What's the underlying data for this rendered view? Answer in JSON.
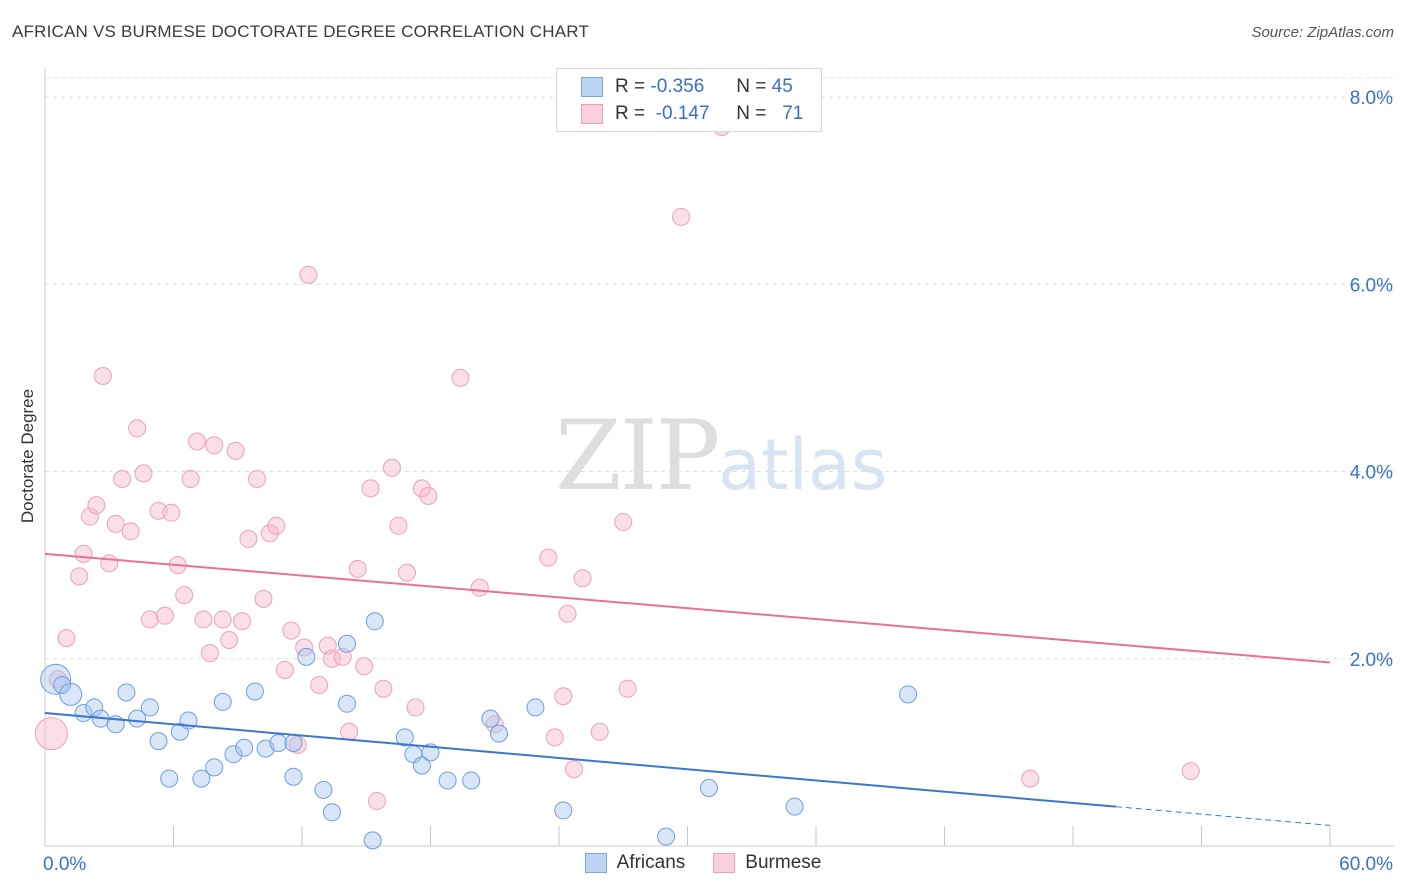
{
  "header": {
    "title": "AFRICAN VS BURMESE DOCTORATE DEGREE CORRELATION CHART",
    "source": "Source: ZipAtlas.com"
  },
  "watermark": {
    "zip": "ZIP",
    "atlas": "atlas"
  },
  "legend": {
    "rows": [
      {
        "r_label": "R =",
        "r_value": "-0.356",
        "n_label": "N =",
        "n_value": "45",
        "color": "#a8c8f0"
      },
      {
        "r_label": "R =",
        "r_value": "-0.147",
        "n_label": "N =",
        "n_value": "71",
        "color": "#f7b8cc"
      }
    ]
  },
  "bottom_legend": {
    "africans": "Africans",
    "burmese": "Burmese"
  },
  "chart_data": {
    "type": "scatter",
    "title": "AFRICAN VS BURMESE DOCTORATE DEGREE CORRELATION CHART",
    "xlabel": "",
    "ylabel": "Doctorate Degree",
    "xlim": [
      0,
      60
    ],
    "ylim": [
      0,
      8.3
    ],
    "x_tick_labels": [
      "0.0%",
      "60.0%"
    ],
    "y_tick_labels": [
      "2.0%",
      "4.0%",
      "6.0%",
      "8.0%"
    ],
    "y_ticks": [
      2,
      4,
      6,
      8
    ],
    "grid": true,
    "legend_placement": "top-center",
    "colors": {
      "africans": "#a8c8f0",
      "africans_line": "#3a78d0",
      "burmese": "#f7b8cc",
      "burmese_line": "#e8709a"
    },
    "series": [
      {
        "name": "Africans",
        "trend": {
          "x0": 0,
          "y0": 1.42,
          "x1": 50,
          "y1": 0.42,
          "dash_to": 60,
          "dash_y": 0.22
        },
        "points": [
          [
            0.5,
            1.78
          ],
          [
            0.8,
            1.72
          ],
          [
            1.2,
            1.62
          ],
          [
            1.8,
            1.42
          ],
          [
            2.3,
            1.48
          ],
          [
            2.6,
            1.36
          ],
          [
            3.3,
            1.3
          ],
          [
            3.8,
            1.64
          ],
          [
            4.3,
            1.36
          ],
          [
            4.9,
            1.48
          ],
          [
            5.3,
            1.12
          ],
          [
            5.8,
            0.72
          ],
          [
            6.3,
            1.22
          ],
          [
            6.7,
            1.34
          ],
          [
            7.3,
            0.72
          ],
          [
            7.9,
            0.84
          ],
          [
            8.3,
            1.54
          ],
          [
            8.8,
            0.98
          ],
          [
            9.3,
            1.05
          ],
          [
            9.8,
            1.65
          ],
          [
            10.3,
            1.04
          ],
          [
            10.9,
            1.1
          ],
          [
            11.6,
            1.1
          ],
          [
            11.6,
            0.74
          ],
          [
            12.2,
            2.02
          ],
          [
            13.0,
            0.6
          ],
          [
            13.4,
            0.36
          ],
          [
            14.1,
            2.16
          ],
          [
            14.1,
            1.52
          ],
          [
            15.4,
            2.4
          ],
          [
            15.3,
            0.06
          ],
          [
            16.8,
            1.16
          ],
          [
            17.2,
            0.98
          ],
          [
            17.6,
            0.86
          ],
          [
            18.0,
            1.0
          ],
          [
            18.8,
            0.7
          ],
          [
            19.9,
            0.7
          ],
          [
            20.8,
            1.36
          ],
          [
            21.2,
            1.2
          ],
          [
            22.9,
            1.48
          ],
          [
            24.2,
            0.38
          ],
          [
            29.0,
            0.1
          ],
          [
            31.0,
            0.62
          ],
          [
            35.0,
            0.42
          ],
          [
            40.3,
            1.62
          ]
        ]
      },
      {
        "name": "Burmese",
        "trend": {
          "x0": 0,
          "y0": 3.12,
          "x1": 60,
          "y1": 1.96
        },
        "points": [
          [
            0.3,
            1.2
          ],
          [
            0.6,
            1.78
          ],
          [
            1.0,
            2.22
          ],
          [
            1.6,
            2.88
          ],
          [
            1.8,
            3.12
          ],
          [
            2.1,
            3.52
          ],
          [
            2.4,
            3.64
          ],
          [
            2.7,
            5.02
          ],
          [
            3.0,
            3.02
          ],
          [
            3.3,
            3.44
          ],
          [
            3.6,
            3.92
          ],
          [
            4.0,
            3.36
          ],
          [
            4.3,
            4.46
          ],
          [
            4.6,
            3.98
          ],
          [
            4.9,
            2.42
          ],
          [
            5.3,
            3.58
          ],
          [
            5.6,
            2.46
          ],
          [
            5.9,
            3.56
          ],
          [
            6.2,
            3.0
          ],
          [
            6.5,
            2.68
          ],
          [
            6.8,
            3.92
          ],
          [
            7.1,
            4.32
          ],
          [
            7.4,
            2.42
          ],
          [
            7.7,
            2.06
          ],
          [
            7.9,
            4.28
          ],
          [
            8.3,
            2.42
          ],
          [
            8.6,
            2.2
          ],
          [
            8.9,
            4.22
          ],
          [
            9.2,
            2.4
          ],
          [
            9.5,
            3.28
          ],
          [
            9.9,
            3.92
          ],
          [
            10.2,
            2.64
          ],
          [
            10.5,
            3.34
          ],
          [
            10.8,
            3.42
          ],
          [
            11.2,
            1.88
          ],
          [
            11.5,
            2.3
          ],
          [
            11.8,
            1.08
          ],
          [
            12.1,
            2.12
          ],
          [
            12.3,
            6.1
          ],
          [
            12.8,
            1.72
          ],
          [
            13.2,
            2.14
          ],
          [
            13.4,
            2.0
          ],
          [
            13.9,
            2.02
          ],
          [
            14.2,
            1.22
          ],
          [
            14.6,
            2.96
          ],
          [
            14.9,
            1.92
          ],
          [
            15.2,
            3.82
          ],
          [
            15.5,
            0.48
          ],
          [
            15.8,
            1.68
          ],
          [
            16.2,
            4.04
          ],
          [
            16.5,
            3.42
          ],
          [
            16.9,
            2.92
          ],
          [
            17.3,
            1.48
          ],
          [
            17.6,
            3.82
          ],
          [
            17.9,
            3.74
          ],
          [
            19.4,
            5.0
          ],
          [
            20.3,
            2.76
          ],
          [
            21.0,
            1.3
          ],
          [
            23.5,
            3.08
          ],
          [
            23.8,
            1.16
          ],
          [
            24.2,
            1.6
          ],
          [
            24.4,
            2.48
          ],
          [
            24.7,
            0.82
          ],
          [
            25.1,
            2.86
          ],
          [
            25.9,
            1.22
          ],
          [
            27.0,
            3.46
          ],
          [
            27.2,
            1.68
          ],
          [
            29.7,
            6.72
          ],
          [
            31.6,
            7.68
          ],
          [
            46.0,
            0.72
          ],
          [
            53.5,
            0.8
          ]
        ]
      }
    ]
  }
}
